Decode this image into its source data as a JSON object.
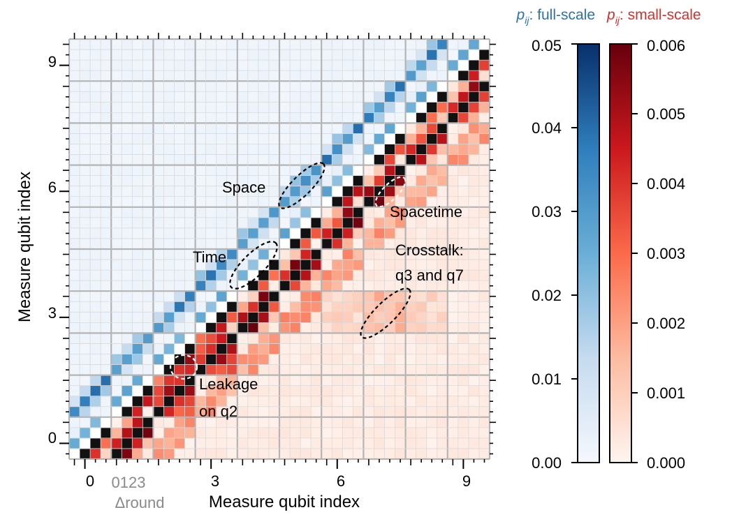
{
  "chart_data": {
    "type": "heatmap",
    "xlabel": "Measure qubit index",
    "ylabel": "Measure qubit index",
    "x_ticks": [
      0,
      3,
      6,
      9
    ],
    "y_ticks": [
      0,
      3,
      6,
      9
    ],
    "sub_tick_label": "0123",
    "sub_axis_label": "Δround",
    "qubits": 10,
    "rounds_per_qubit": 4,
    "upper_triangle_colormap": {
      "name": "full-scale",
      "var": "p",
      "sub": "ij",
      "label": ": full-scale",
      "color": "#2b72b0",
      "range": [
        0,
        0.05
      ],
      "ticks": [
        "0.00",
        "0.01",
        "0.02",
        "0.03",
        "0.04",
        "0.05"
      ]
    },
    "lower_triangle_colormap": {
      "name": "small-scale",
      "var": "p",
      "sub": "ij",
      "label": ": small-scale",
      "color": "#d2322d",
      "range": [
        0,
        0.006
      ],
      "ticks": [
        "0.000",
        "0.001",
        "0.002",
        "0.003",
        "0.004",
        "0.005",
        "0.006"
      ]
    },
    "typical_values": {
      "space_neighbor": 0.035,
      "time_neighbor": 0.025,
      "spacetime_neighbor": 0.02,
      "background_upper": 0.0015,
      "background_lower": 0.0003,
      "crosstalk_q3_q7": 0.0012,
      "leakage_q2": 0.0045
    },
    "annotations": [
      {
        "id": "space",
        "text": "Space"
      },
      {
        "id": "time",
        "text": "Time"
      },
      {
        "id": "spacetime",
        "text": "Spacetime"
      },
      {
        "id": "crosstalk",
        "lines": [
          "Crosstalk:",
          "q3 and q7"
        ]
      },
      {
        "id": "leakage",
        "lines": [
          "Leakage",
          "on q2"
        ]
      }
    ]
  }
}
